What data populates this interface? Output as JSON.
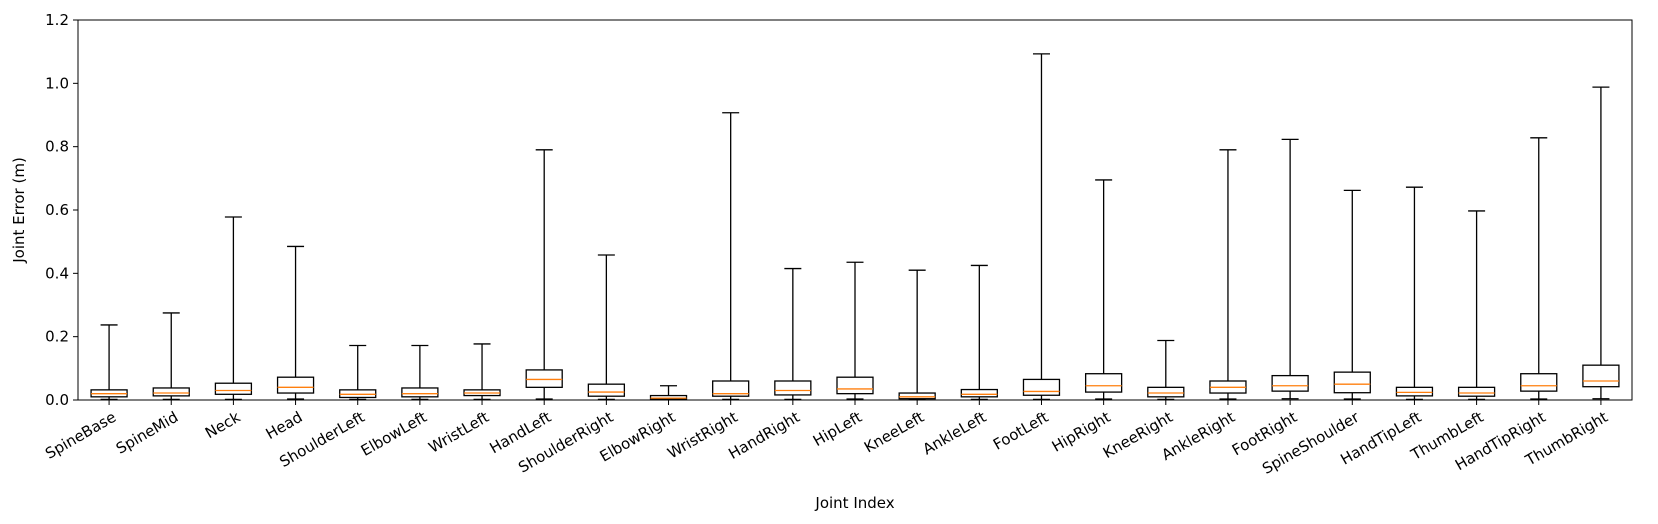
{
  "chart_data": {
    "type": "boxplot",
    "title": "",
    "xlabel": "Joint Index",
    "ylabel": "Joint Error (m)",
    "ylim": [
      0,
      1.2
    ],
    "yticks": [
      0.0,
      0.2,
      0.4,
      0.6,
      0.8,
      1.0,
      1.2
    ],
    "ytick_labels": [
      "0.0",
      "0.2",
      "0.4",
      "0.6",
      "0.8",
      "1.0",
      "1.2"
    ],
    "grid": false,
    "colors": {
      "box": "#000000",
      "median": "#ff7f0e",
      "axis": "#000000"
    },
    "categories": [
      "SpineBase",
      "SpineMid",
      "Neck",
      "Head",
      "ShoulderLeft",
      "ElbowLeft",
      "WristLeft",
      "HandLeft",
      "ShoulderRight",
      "ElbowRight",
      "WristRight",
      "HandRight",
      "HipLeft",
      "KneeLeft",
      "AnkleLeft",
      "FootLeft",
      "HipRight",
      "KneeRight",
      "AnkleRight",
      "FootRight",
      "SpineShoulder",
      "HandTipLeft",
      "ThumbLeft",
      "HandTipRight",
      "ThumbRight"
    ],
    "series": [
      {
        "name": "SpineBase",
        "whislo": 0.002,
        "q1": 0.01,
        "median": 0.02,
        "q3": 0.032,
        "whishi": 0.237
      },
      {
        "name": "SpineMid",
        "whislo": 0.002,
        "q1": 0.013,
        "median": 0.022,
        "q3": 0.038,
        "whishi": 0.275
      },
      {
        "name": "Neck",
        "whislo": 0.002,
        "q1": 0.018,
        "median": 0.03,
        "q3": 0.053,
        "whishi": 0.578
      },
      {
        "name": "Head",
        "whislo": 0.003,
        "q1": 0.022,
        "median": 0.04,
        "q3": 0.072,
        "whishi": 0.485
      },
      {
        "name": "ShoulderLeft",
        "whislo": 0.002,
        "q1": 0.008,
        "median": 0.018,
        "q3": 0.032,
        "whishi": 0.172
      },
      {
        "name": "ElbowLeft",
        "whislo": 0.002,
        "q1": 0.01,
        "median": 0.02,
        "q3": 0.038,
        "whishi": 0.172
      },
      {
        "name": "WristLeft",
        "whislo": 0.002,
        "q1": 0.014,
        "median": 0.022,
        "q3": 0.032,
        "whishi": 0.177
      },
      {
        "name": "HandLeft",
        "whislo": 0.003,
        "q1": 0.04,
        "median": 0.065,
        "q3": 0.095,
        "whishi": 0.79
      },
      {
        "name": "ShoulderRight",
        "whislo": 0.002,
        "q1": 0.012,
        "median": 0.025,
        "q3": 0.05,
        "whishi": 0.458
      },
      {
        "name": "ElbowRight",
        "whislo": 0.001,
        "q1": 0.003,
        "median": 0.006,
        "q3": 0.014,
        "whishi": 0.045
      },
      {
        "name": "WristRight",
        "whislo": 0.002,
        "q1": 0.012,
        "median": 0.02,
        "q3": 0.06,
        "whishi": 0.907
      },
      {
        "name": "HandRight",
        "whislo": 0.002,
        "q1": 0.016,
        "median": 0.03,
        "q3": 0.06,
        "whishi": 0.415
      },
      {
        "name": "HipLeft",
        "whislo": 0.003,
        "q1": 0.02,
        "median": 0.035,
        "q3": 0.072,
        "whishi": 0.435
      },
      {
        "name": "KneeLeft",
        "whislo": 0.001,
        "q1": 0.004,
        "median": 0.01,
        "q3": 0.022,
        "whishi": 0.41
      },
      {
        "name": "AnkleLeft",
        "whislo": 0.002,
        "q1": 0.01,
        "median": 0.018,
        "q3": 0.033,
        "whishi": 0.425
      },
      {
        "name": "FootLeft",
        "whislo": 0.002,
        "q1": 0.015,
        "median": 0.027,
        "q3": 0.065,
        "whishi": 1.093
      },
      {
        "name": "HipRight",
        "whislo": 0.003,
        "q1": 0.025,
        "median": 0.045,
        "q3": 0.083,
        "whishi": 0.695
      },
      {
        "name": "KneeRight",
        "whislo": 0.002,
        "q1": 0.01,
        "median": 0.022,
        "q3": 0.04,
        "whishi": 0.188
      },
      {
        "name": "AnkleRight",
        "whislo": 0.003,
        "q1": 0.022,
        "median": 0.04,
        "q3": 0.06,
        "whishi": 0.79
      },
      {
        "name": "FootRight",
        "whislo": 0.004,
        "q1": 0.028,
        "median": 0.045,
        "q3": 0.077,
        "whishi": 0.823
      },
      {
        "name": "SpineShoulder",
        "whislo": 0.003,
        "q1": 0.023,
        "median": 0.05,
        "q3": 0.088,
        "whishi": 0.662
      },
      {
        "name": "HandTipLeft",
        "whislo": 0.002,
        "q1": 0.013,
        "median": 0.024,
        "q3": 0.04,
        "whishi": 0.672
      },
      {
        "name": "ThumbLeft",
        "whislo": 0.002,
        "q1": 0.012,
        "median": 0.022,
        "q3": 0.04,
        "whishi": 0.597
      },
      {
        "name": "HandTipRight",
        "whislo": 0.003,
        "q1": 0.028,
        "median": 0.045,
        "q3": 0.083,
        "whishi": 0.828
      },
      {
        "name": "ThumbRight",
        "whislo": 0.004,
        "q1": 0.042,
        "median": 0.06,
        "q3": 0.11,
        "whishi": 0.988
      }
    ]
  }
}
